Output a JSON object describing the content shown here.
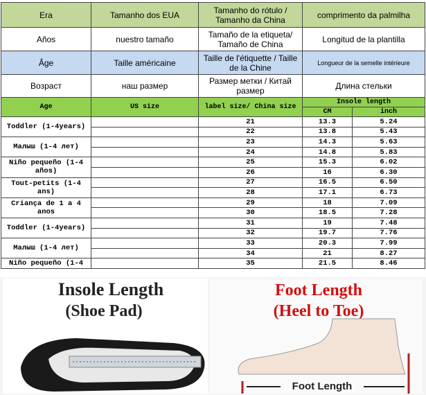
{
  "header_rows": [
    [
      "Era",
      "Tamanho dos EUA",
      "Tamanho do rótulo / Tamanho da China",
      "comprimento da palmilha"
    ],
    [
      "Años",
      "nuestro tamaño",
      "Tamaño de la etiqueta/ Tamaño de China",
      "Longitud de la plantilla"
    ],
    [
      "Âge",
      "Taille américaine",
      "Taille de l'étiquette / Taille de la Chine",
      "Longueur de la semelle intérieure"
    ],
    [
      "Возраст",
      "наш размер",
      "Размер метки / Китай размер",
      "Длина стельки"
    ]
  ],
  "size_table": {
    "headers": {
      "age": "Age",
      "us": "US size",
      "label": "label size/ China size",
      "insole": "Insole length",
      "cm": "CM",
      "inch": "inch"
    },
    "age_groups": [
      "Toddler (1-4years)",
      "Малыш (1-4 лет)",
      "Niño pequeño (1-4 años)",
      "Tout-petits (1-4 ans)",
      "Criança de 1 a 4 anos",
      "Toddler (1-4years)",
      "Малыш (1-4 лет)",
      "Niño pequeño (1-4"
    ],
    "rows": [
      [
        "21",
        "13.3",
        "5.24"
      ],
      [
        "22",
        "13.8",
        "5.43"
      ],
      [
        "23",
        "14.3",
        "5.63"
      ],
      [
        "24",
        "14.8",
        "5.83"
      ],
      [
        "25",
        "15.3",
        "6.02"
      ],
      [
        "26",
        "16",
        "6.30"
      ],
      [
        "27",
        "16.5",
        "6.50"
      ],
      [
        "28",
        "17.1",
        "6.73"
      ],
      [
        "29",
        "18",
        "7.09"
      ],
      [
        "30",
        "18.5",
        "7.28"
      ],
      [
        "31",
        "19",
        "7.48"
      ],
      [
        "32",
        "19.7",
        "7.76"
      ],
      [
        "33",
        "20.3",
        "7.99"
      ],
      [
        "34",
        "21",
        "8.27"
      ],
      [
        "35",
        "21.5",
        "8.46"
      ]
    ]
  },
  "image_section": {
    "left_title": "Insole Length",
    "left_subtitle": "(Shoe Pad)",
    "right_title": "Foot Length",
    "right_subtitle": "(Heel to Toe)",
    "foot_label": "Foot Length"
  }
}
